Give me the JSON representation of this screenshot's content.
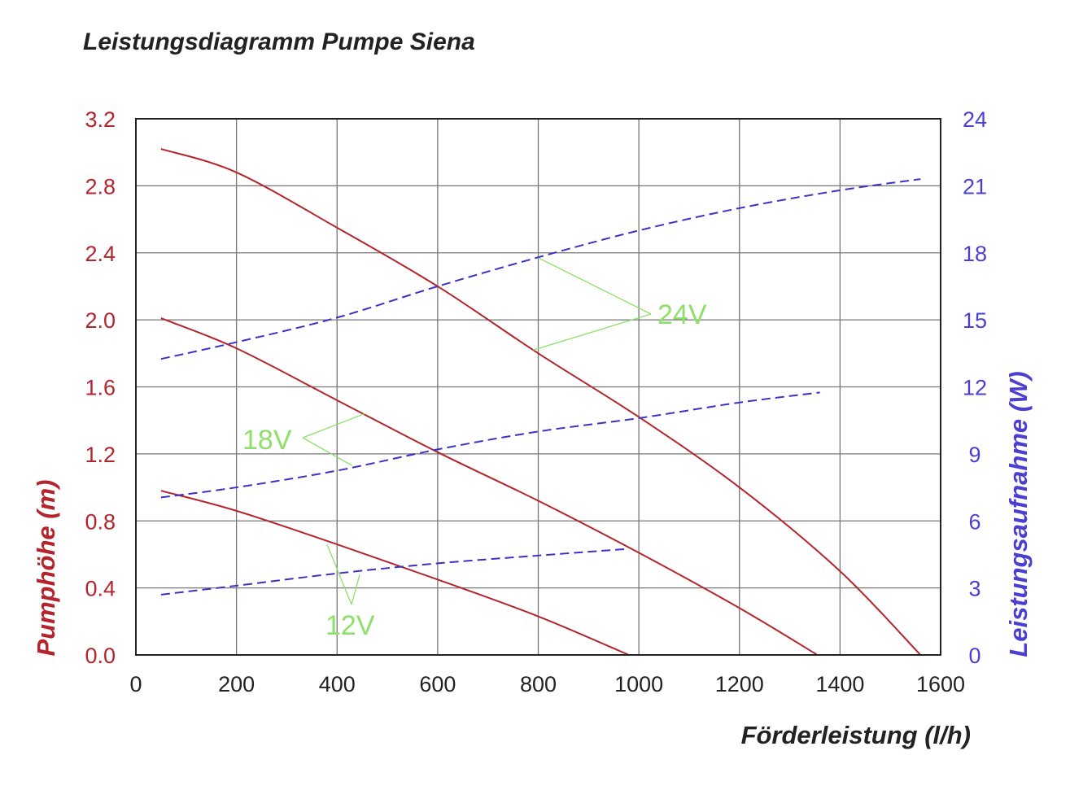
{
  "chart_data": {
    "type": "line",
    "title": "Leistungsdiagramm Pumpe Siena",
    "xlabel": "Förderleistung (l/h)",
    "ylabel": "Pumphöhe (m)",
    "y2label": "Leistungsaufnahme (W)",
    "xlim": [
      0,
      1600
    ],
    "ylim": [
      0,
      3.2
    ],
    "y2lim": [
      0,
      24
    ],
    "xticks": [
      "0",
      "200",
      "400",
      "600",
      "800",
      "1000",
      "1200",
      "1400",
      "1600"
    ],
    "yticks": [
      "0.0",
      "0.4",
      "0.8",
      "1.2",
      "1.6",
      "2.0",
      "2.4",
      "2.8",
      "3.2"
    ],
    "y2ticks": [
      "0",
      "3",
      "6",
      "9",
      "12",
      "15",
      "18",
      "21",
      "24"
    ],
    "grid": true,
    "colors": {
      "head": "#b5242c",
      "power": "#3a33c8",
      "annotation": "#8ee06a",
      "grid": "#777777"
    },
    "series": [
      {
        "axis": "left",
        "style": "solid",
        "voltage": "24V",
        "x": [
          50,
          200,
          400,
          600,
          800,
          1000,
          1200,
          1400,
          1560
        ],
        "y": [
          3.02,
          2.88,
          2.55,
          2.2,
          1.8,
          1.42,
          1.0,
          0.5,
          0.0
        ]
      },
      {
        "axis": "left",
        "style": "solid",
        "voltage": "18V",
        "x": [
          50,
          200,
          400,
          600,
          800,
          1000,
          1200,
          1355
        ],
        "y": [
          2.01,
          1.83,
          1.52,
          1.21,
          0.92,
          0.61,
          0.28,
          0.0
        ]
      },
      {
        "axis": "left",
        "style": "solid",
        "voltage": "12V",
        "x": [
          50,
          200,
          400,
          600,
          800,
          980
        ],
        "y": [
          0.98,
          0.86,
          0.66,
          0.45,
          0.23,
          0.0
        ]
      },
      {
        "axis": "right",
        "style": "dashed",
        "voltage": "24V",
        "x": [
          50,
          200,
          400,
          600,
          800,
          1000,
          1200,
          1400,
          1560
        ],
        "y": [
          13.25,
          14.0,
          15.1,
          16.5,
          17.8,
          19.0,
          20.0,
          20.8,
          21.3
        ]
      },
      {
        "axis": "right",
        "style": "dashed",
        "voltage": "18V",
        "x": [
          50,
          200,
          400,
          600,
          800,
          1000,
          1200,
          1360
        ],
        "y": [
          7.05,
          7.5,
          8.25,
          9.2,
          10.0,
          10.6,
          11.3,
          11.75
        ]
      },
      {
        "axis": "right",
        "style": "dashed",
        "voltage": "12V",
        "x": [
          50,
          200,
          400,
          600,
          800,
          980
        ],
        "y": [
          2.7,
          3.1,
          3.65,
          4.1,
          4.45,
          4.75
        ]
      }
    ],
    "annotations": [
      {
        "text": "24V",
        "targets": [
          [
            800,
            2.37
          ],
          [
            790,
            1.82
          ]
        ]
      },
      {
        "text": "18V",
        "targets": [
          [
            455,
            1.44
          ],
          [
            430,
            1.13
          ]
        ]
      },
      {
        "text": "12V",
        "targets": [
          [
            380,
            0.66
          ],
          [
            445,
            0.48
          ]
        ]
      }
    ]
  }
}
